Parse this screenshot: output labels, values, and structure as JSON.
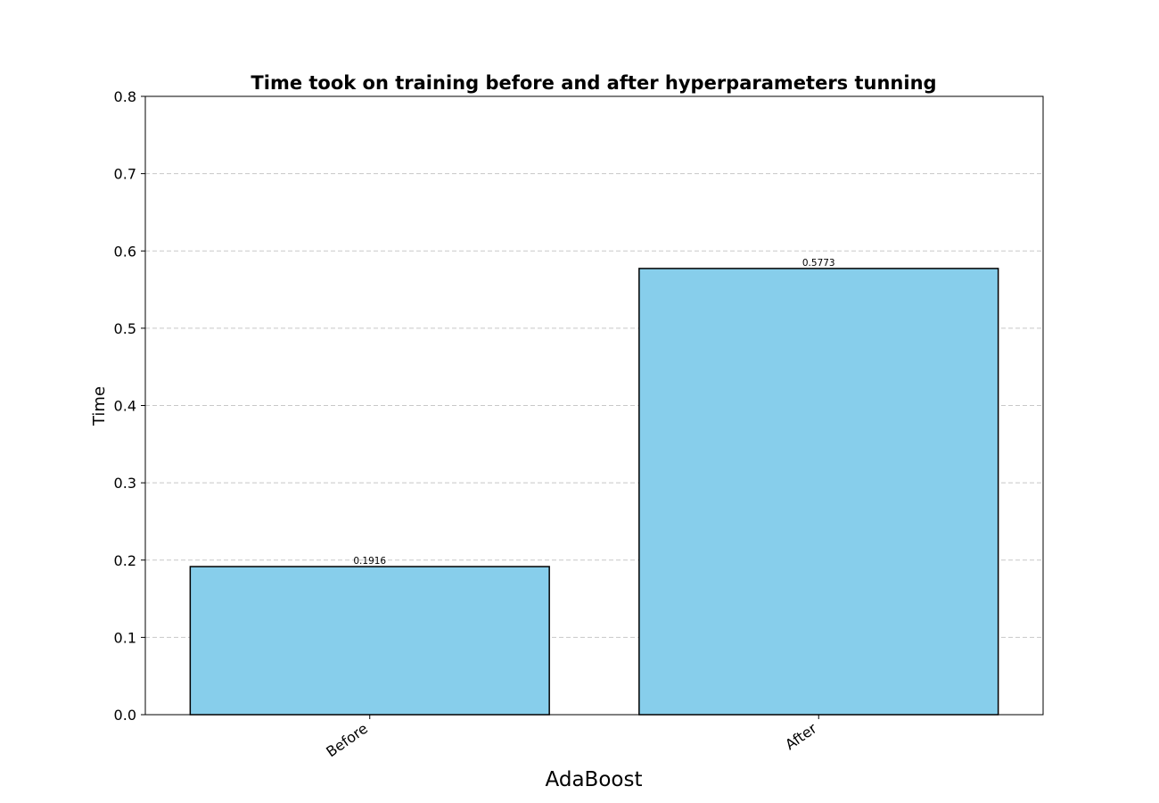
{
  "chart_data": {
    "type": "bar",
    "title": "Time took on training before and after hyperparameters tunning",
    "xlabel": "AdaBoost",
    "ylabel": "Time",
    "categories": [
      "Before",
      "After"
    ],
    "values": [
      0.1916,
      0.5773
    ],
    "data_labels": [
      "0.1916",
      "0.5773"
    ],
    "ylim": [
      0,
      0.8
    ],
    "yticks": [
      "0.0",
      "0.1",
      "0.2",
      "0.3",
      "0.4",
      "0.5",
      "0.6",
      "0.7",
      "0.8"
    ],
    "grid": "y-dashed",
    "legend": "none",
    "bar_color": "#87CEEB",
    "bar_edge_color": "#000000"
  }
}
